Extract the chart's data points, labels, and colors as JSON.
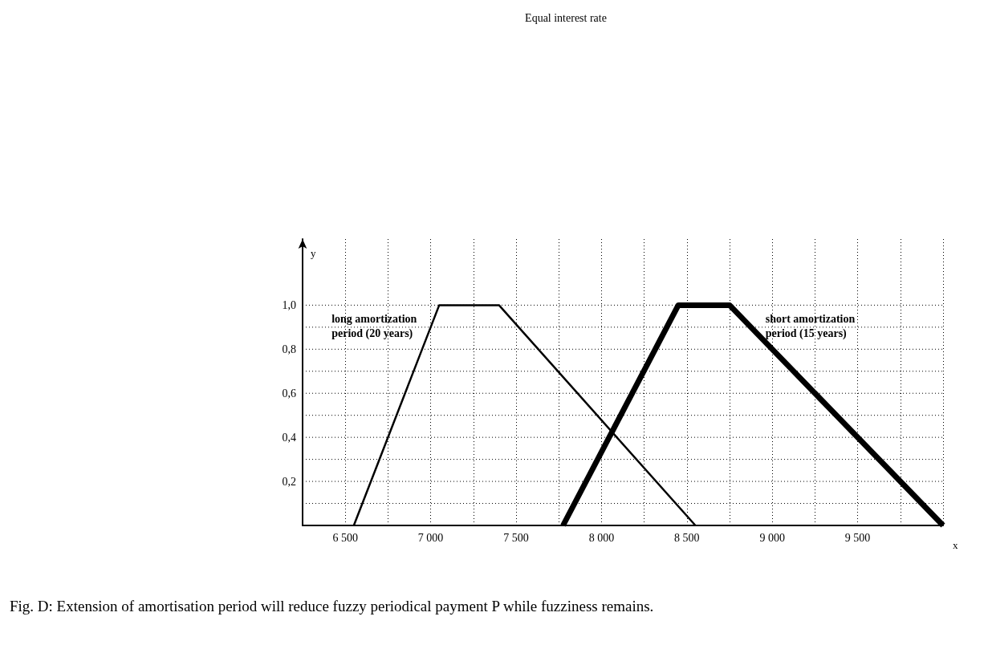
{
  "chart_data": {
    "type": "line",
    "title": "Equal interest rate",
    "xlabel": "x",
    "ylabel": "y",
    "xlim": [
      6250,
      10000
    ],
    "ylim": [
      0,
      1.3
    ],
    "xticks": [
      {
        "value": 6500,
        "label": "6 500"
      },
      {
        "value": 6750,
        "label": null
      },
      {
        "value": 7000,
        "label": "7 000"
      },
      {
        "value": 7250,
        "label": null
      },
      {
        "value": 7500,
        "label": "7 500"
      },
      {
        "value": 7750,
        "label": null
      },
      {
        "value": 8000,
        "label": "8 000"
      },
      {
        "value": 8250,
        "label": null
      },
      {
        "value": 8500,
        "label": "8 500"
      },
      {
        "value": 8750,
        "label": null
      },
      {
        "value": 9000,
        "label": "9 000"
      },
      {
        "value": 9250,
        "label": null
      },
      {
        "value": 9500,
        "label": "9 500"
      },
      {
        "value": 9750,
        "label": null
      },
      {
        "value": 10000,
        "label": null
      }
    ],
    "yticks": [
      {
        "value": 0.1,
        "label": null
      },
      {
        "value": 0.2,
        "label": "0,2"
      },
      {
        "value": 0.3,
        "label": null
      },
      {
        "value": 0.4,
        "label": "0,4"
      },
      {
        "value": 0.5,
        "label": null
      },
      {
        "value": 0.6,
        "label": "0,6"
      },
      {
        "value": 0.7,
        "label": null
      },
      {
        "value": 0.8,
        "label": "0,8"
      },
      {
        "value": 0.9,
        "label": null
      },
      {
        "value": 1.0,
        "label": "1,0"
      }
    ],
    "grid": true,
    "marker": "none",
    "line_style": "solid",
    "legend": false,
    "series": [
      {
        "name": "long amortization period (20 years)",
        "color": "#000000",
        "x": [
          6550,
          7050,
          7400,
          8550
        ],
        "values": [
          0,
          1,
          1,
          0
        ]
      },
      {
        "name": "short amortization period (15 years)",
        "color": "#000000",
        "x": [
          7775,
          8450,
          8750,
          10000
        ],
        "values": [
          0,
          1,
          1,
          0
        ]
      }
    ],
    "annotations": [
      "Fig. D: Extension of amortisation period will reduce fuzzy periodical payment P while fuzziness remains."
    ]
  }
}
